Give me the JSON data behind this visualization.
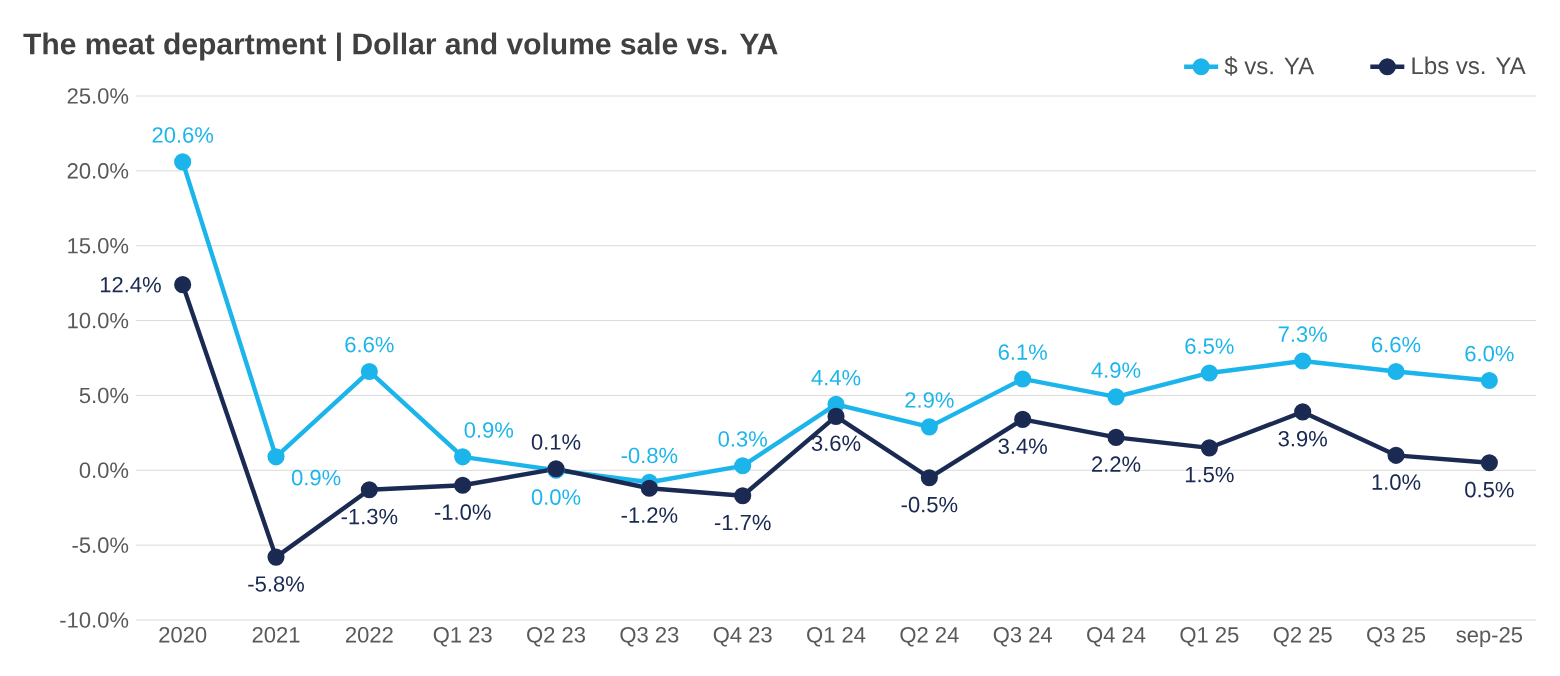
{
  "chart_data": {
    "type": "line",
    "title": "The meat department | Dollar and volume sale vs. YA",
    "categories": [
      "2020",
      "2021",
      "2022",
      "Q1 23",
      "Q2 23",
      "Q3 23",
      "Q4 23",
      "Q1 24",
      "Q2 24",
      "Q3 24",
      "Q4 24",
      "Q1 25",
      "Q2 25",
      "Q3 25",
      "sep-25"
    ],
    "series": [
      {
        "name": "$ vs. YA",
        "color": "#1cb5eb",
        "values": [
          20.6,
          0.9,
          6.6,
          0.9,
          0.0,
          -0.8,
          0.3,
          4.4,
          2.9,
          6.1,
          4.9,
          6.5,
          7.3,
          6.6,
          6.0
        ],
        "value_labels": [
          "20.6%",
          "0.9%",
          "6.6%",
          "0.9%",
          "0.0%",
          "-0.8%",
          "0.3%",
          "4.4%",
          "2.9%",
          "6.1%",
          "4.9%",
          "6.5%",
          "7.3%",
          "6.6%",
          "6.0%"
        ]
      },
      {
        "name": "Lbs vs. YA",
        "color": "#1a2a52",
        "values": [
          12.4,
          -5.8,
          -1.3,
          -1.0,
          0.1,
          -1.2,
          -1.7,
          3.6,
          -0.5,
          3.4,
          2.2,
          1.5,
          3.9,
          1.0,
          0.5
        ],
        "value_labels": [
          "12.4%",
          "-5.8%",
          "-1.3%",
          "-1.0%",
          "0.1%",
          "-1.2%",
          "-1.7%",
          "3.6%",
          "-0.5%",
          "3.4%",
          "2.2%",
          "1.5%",
          "3.9%",
          "1.0%",
          "0.5%"
        ]
      }
    ],
    "ylim": [
      -10,
      25
    ],
    "yticks": [
      {
        "value": -10,
        "label": "-10.0%"
      },
      {
        "value": -5,
        "label": "-5.0%"
      },
      {
        "value": 0,
        "label": "0.0%"
      },
      {
        "value": 5,
        "label": "5.0%"
      },
      {
        "value": 10,
        "label": "10.0%"
      },
      {
        "value": 15,
        "label": "15.0%"
      },
      {
        "value": 20,
        "label": "20.0%"
      },
      {
        "value": 25,
        "label": "25.0%"
      }
    ],
    "grid": "y",
    "legend": "top right",
    "marker": "circle",
    "line_style": "solid"
  }
}
